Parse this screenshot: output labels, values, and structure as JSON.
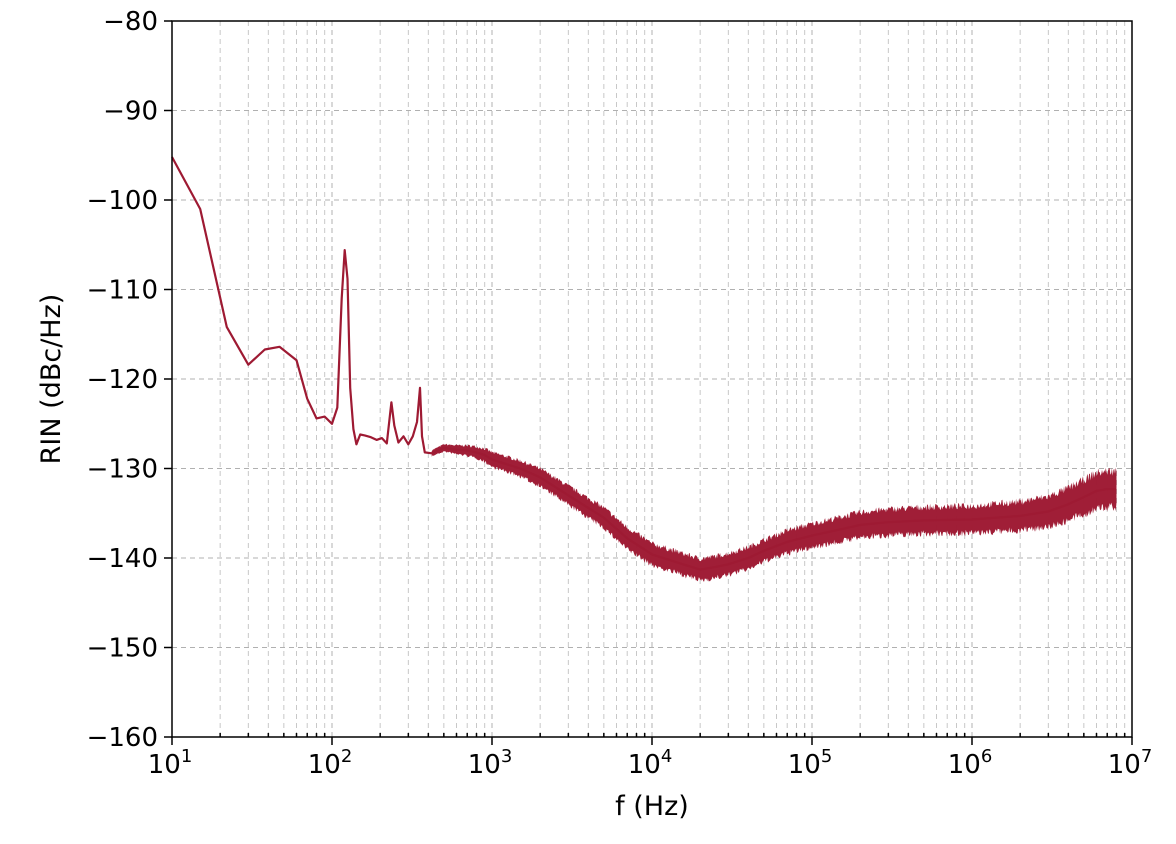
{
  "chart_data": {
    "type": "line",
    "title": "",
    "xlabel": "f (Hz)",
    "ylabel": "RIN (dBc/Hz)",
    "xscale": "log",
    "xlim": [
      10,
      10000000
    ],
    "ylim": [
      -160,
      -80
    ],
    "grid": "major and minor, dashed",
    "x_ticks": [
      {
        "base": "10",
        "exp": "1",
        "value": 10
      },
      {
        "base": "10",
        "exp": "2",
        "value": 100
      },
      {
        "base": "10",
        "exp": "3",
        "value": 1000
      },
      {
        "base": "10",
        "exp": "4",
        "value": 10000
      },
      {
        "base": "10",
        "exp": "5",
        "value": 100000
      },
      {
        "base": "10",
        "exp": "6",
        "value": 1000000
      },
      {
        "base": "10",
        "exp": "7",
        "value": 10000000
      }
    ],
    "y_ticks": [
      {
        "label": "−80",
        "value": -80
      },
      {
        "label": "−90",
        "value": -90
      },
      {
        "label": "−100",
        "value": -100
      },
      {
        "label": "−110",
        "value": -110
      },
      {
        "label": "−120",
        "value": -120
      },
      {
        "label": "−130",
        "value": -130
      },
      {
        "label": "−140",
        "value": -140
      },
      {
        "label": "−150",
        "value": -150
      },
      {
        "label": "−160",
        "value": -160
      }
    ],
    "series": [
      {
        "color": "#9e1a33",
        "x": [
          10,
          15,
          22,
          30,
          38,
          47,
          60,
          70,
          80,
          90,
          100,
          108,
          115,
          120,
          125,
          130,
          136,
          142,
          150,
          160,
          175,
          190,
          205,
          220,
          235,
          245,
          260,
          280,
          300,
          320,
          340,
          355,
          365,
          380,
          420,
          500,
          600,
          700,
          800,
          900,
          1000,
          1500,
          2000,
          3000,
          5000,
          7000,
          10000,
          15000,
          20000,
          25000,
          30000,
          40000,
          50000,
          70000,
          100000,
          150000,
          200000,
          300000,
          500000,
          1000000,
          2000000,
          3000000,
          4000000,
          5000000,
          6000000,
          7000000,
          8000000
        ],
        "values": [
          -95.2,
          -101.0,
          -114.2,
          -118.4,
          -116.7,
          -116.4,
          -117.9,
          -122.2,
          -124.4,
          -124.2,
          -125.0,
          -123.2,
          -111.0,
          -105.6,
          -108.8,
          -121.0,
          -125.6,
          -127.3,
          -126.2,
          -126.3,
          -126.5,
          -126.8,
          -126.6,
          -127.2,
          -122.6,
          -125.2,
          -127.1,
          -126.4,
          -127.3,
          -126.4,
          -124.8,
          -121.0,
          -126.4,
          -128.2,
          -128.3,
          -127.7,
          -127.9,
          -128.0,
          -128.2,
          -128.5,
          -129.0,
          -130.0,
          -131.0,
          -133.0,
          -135.5,
          -137.8,
          -139.6,
          -140.6,
          -141.3,
          -141.0,
          -140.7,
          -140.0,
          -139.2,
          -138.2,
          -137.5,
          -136.8,
          -136.3,
          -136.0,
          -135.8,
          -135.7,
          -135.3,
          -134.8,
          -134.0,
          -133.2,
          -132.5,
          -132.3,
          -132.3
        ],
        "noise_band_db": [
          0,
          0,
          0,
          0,
          0,
          0,
          0,
          0,
          0,
          0,
          0,
          0,
          0,
          0,
          0,
          0,
          0,
          0,
          0,
          0,
          0,
          0,
          0,
          0,
          0,
          0,
          0,
          0,
          0,
          0,
          0,
          0,
          0,
          0,
          0.8,
          1.0,
          1.2,
          1.4,
          1.6,
          1.8,
          2.0,
          2.2,
          2.4,
          2.6,
          2.8,
          3.0,
          3.0,
          3.0,
          3.0,
          3.0,
          3.0,
          3.0,
          3.0,
          3.2,
          3.3,
          3.4,
          3.5,
          3.6,
          3.7,
          3.8,
          4.0,
          4.2,
          4.5,
          4.8,
          5.0,
          5.0,
          5.0
        ]
      }
    ]
  }
}
